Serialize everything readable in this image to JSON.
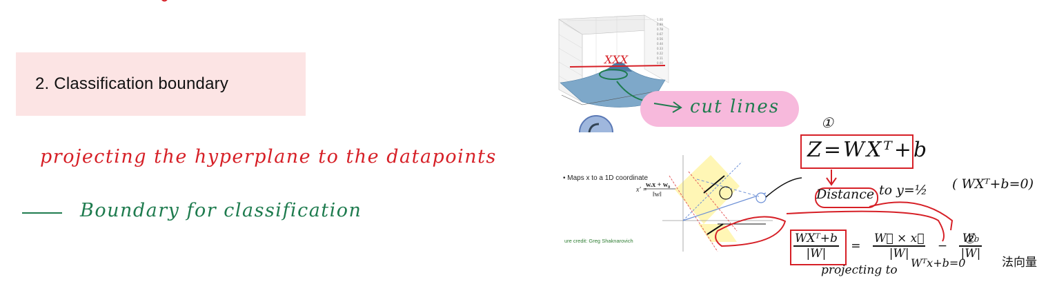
{
  "heading": {
    "text": "2. Classification boundary"
  },
  "notes": {
    "line1": "projecting the hyperplane to the datapoints",
    "line2": "Boundary for classification"
  },
  "left_figure": {
    "annotation": "cut lines",
    "marks": "XXX",
    "tick_labels": [
      "1.00",
      "0.89",
      "0.78",
      "0.67",
      "0.56",
      "0.44",
      "0.33",
      "0.22",
      "0.11",
      "0.00"
    ]
  },
  "slide": {
    "bullet": "• Maps x to a 1D coordinate",
    "formula_lhs": "x′ =",
    "formula_num": "w.x + w₀",
    "formula_den": "‖w‖",
    "credit": "ure credit: Greg Shaknarovich"
  },
  "handwriting": {
    "badge1": "①",
    "badge2": "②",
    "z_equation": "Z=WXᵀ+b",
    "distance_word": "Distance",
    "distance_rest": "to  y=½",
    "paren_eq": "( WXᵀ+b=0)",
    "frac1_num": "WXᵀ+b",
    "frac1_den": "|W|",
    "eq": "=",
    "frac2_num": "W⃗ × x⃗",
    "frac2_den": "|W|",
    "minus": "−",
    "frac3_num": "W₀",
    "frac3_den": "|W|",
    "projecting": "projecting  to",
    "proj_eq": "Wᵀx+b=0",
    "proj_cn": "法向量"
  },
  "colors": {
    "red": "#d61f26",
    "green": "#1e7b4e",
    "pink": "#f7b9dc",
    "heading_bg": "#fce4e4"
  }
}
